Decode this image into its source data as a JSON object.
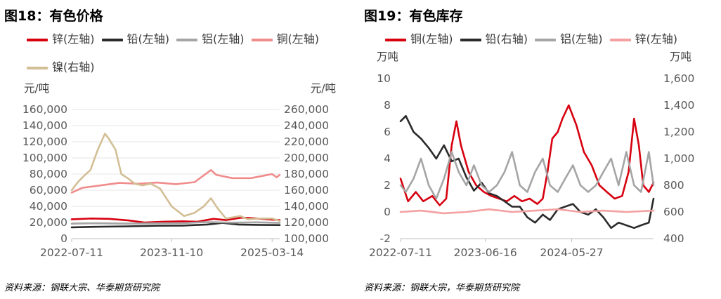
{
  "charts": [
    {
      "title": "图18：有色价格",
      "source": "资料来源：钢联大宗、华泰期货研究院",
      "chart_data": {
        "type": "line",
        "y_left_unit": "元/吨",
        "y_right_unit": "元/吨",
        "y_left_range": [
          0,
          160000
        ],
        "y_left_ticks": [
          "0",
          "20,000",
          "40,000",
          "60,000",
          "80,000",
          "100,000",
          "120,000",
          "140,000",
          "160,000"
        ],
        "y_right_range": [
          100000,
          260000
        ],
        "y_right_ticks": [
          "100,000",
          "120,000",
          "140,000",
          "160,000",
          "180,000",
          "200,000",
          "220,000",
          "240,000",
          "260,000"
        ],
        "x_range": [
          "2022-07-11",
          "2025-04-20"
        ],
        "x_ticks": [
          "2022-07-11",
          "2023-11-10",
          "2025-03-14"
        ],
        "grid": "horizontal",
        "legend_position": "top",
        "series": [
          {
            "name": "锌(左轴)",
            "axis": "left",
            "color": "#d7000f",
            "x": [
              "2022-07-11",
              "2022-10-15",
              "2023-01-10",
              "2023-04-15",
              "2023-07-01",
              "2023-10-01",
              "2024-01-01",
              "2024-03-15",
              "2024-06-01",
              "2024-08-01",
              "2024-10-15",
              "2025-01-01",
              "2025-03-14",
              "2025-04-20"
            ],
            "y": [
              24000,
              25000,
              24500,
              22500,
              20000,
              21000,
              21500,
              21000,
              24500,
              23000,
              26000,
              25000,
              23500,
              23000
            ]
          },
          {
            "name": "铅(左轴)",
            "axis": "left",
            "color": "#2b2b2b",
            "x": [
              "2022-07-11",
              "2022-12-01",
              "2023-04-01",
              "2023-09-01",
              "2024-01-01",
              "2024-05-01",
              "2024-07-15",
              "2024-10-01",
              "2025-01-01",
              "2025-04-20"
            ],
            "y": [
              14000,
              14800,
              15200,
              16000,
              16200,
              17500,
              19500,
              17500,
              17000,
              16800
            ]
          },
          {
            "name": "铝(左轴)",
            "axis": "left",
            "color": "#a5a5a5",
            "x": [
              "2022-07-11",
              "2022-11-01",
              "2023-04-01",
              "2023-09-01",
              "2024-01-01",
              "2024-05-01",
              "2024-09-01",
              "2025-01-01",
              "2025-04-20"
            ],
            "y": [
              18500,
              19000,
              18500,
              19000,
              19200,
              20500,
              19800,
              20200,
              19500
            ]
          },
          {
            "name": "铜(左轴)",
            "axis": "left",
            "color": "#f08c8c",
            "x": [
              "2022-07-11",
              "2022-09-01",
              "2022-12-01",
              "2023-03-01",
              "2023-06-01",
              "2023-09-01",
              "2023-12-01",
              "2024-03-01",
              "2024-05-20",
              "2024-06-15",
              "2024-09-01",
              "2024-12-01",
              "2025-02-01",
              "2025-03-14",
              "2025-04-05",
              "2025-04-20"
            ],
            "y": [
              57000,
              63000,
              66000,
              69000,
              68000,
              69500,
              67500,
              70000,
              85000,
              79000,
              75000,
              75000,
              78000,
              80000,
              76000,
              79000
            ]
          },
          {
            "name": "镍(右轴)",
            "axis": "right",
            "color": "#d3bf96",
            "x": [
              "2022-07-11",
              "2022-08-10",
              "2022-09-10",
              "2022-10-10",
              "2022-11-15",
              "2022-12-20",
              "2023-01-05",
              "2023-02-10",
              "2023-03-10",
              "2023-04-10",
              "2023-05-15",
              "2023-06-20",
              "2023-08-01",
              "2023-09-15",
              "2023-11-10",
              "2024-01-10",
              "2024-03-01",
              "2024-04-15",
              "2024-05-20",
              "2024-06-20",
              "2024-08-01",
              "2024-10-10",
              "2024-11-15",
              "2025-01-10",
              "2025-03-14",
              "2025-04-20"
            ],
            "y": [
              160000,
              170000,
              178000,
              185000,
              210000,
              230000,
              225000,
              210000,
              180000,
              175000,
              168000,
              166000,
              168000,
              162000,
              140000,
              128000,
              132000,
              140000,
              150000,
              138000,
              125000,
              128000,
              124000,
              125000,
              125000,
              122000
            ]
          }
        ]
      }
    },
    {
      "title": "图19：有色库存",
      "source": "资料来源：钢联大宗，华泰期货研究院",
      "chart_data": {
        "type": "line",
        "y_left_unit": "万吨",
        "y_right_unit": "万吨",
        "y_left_range": [
          -2,
          10
        ],
        "y_left_ticks": [
          "-2",
          "0",
          "2",
          "4",
          "6",
          "8",
          "10"
        ],
        "y_right_range": [
          400,
          1600
        ],
        "y_right_ticks": [
          "400",
          "600",
          "800",
          "1,000",
          "1,200",
          "1,400",
          "1,600"
        ],
        "x_range": [
          "2022-07-11",
          "2025-04-20"
        ],
        "x_ticks": [
          "2022-07-11",
          "2023-06-16",
          "2024-05-27"
        ],
        "grid": "none",
        "legend_position": "top",
        "series": [
          {
            "name": "铜(左轴)",
            "axis": "left",
            "color": "#d7000f",
            "x": [
              "2022-07-11",
              "2022-08-10",
              "2022-09-10",
              "2022-10-10",
              "2022-11-15",
              "2022-12-15",
              "2023-01-10",
              "2023-02-01",
              "2023-02-20",
              "2023-03-10",
              "2023-04-10",
              "2023-05-10",
              "2023-06-10",
              "2023-07-10",
              "2023-08-10",
              "2023-09-10",
              "2023-10-10",
              "2023-11-10",
              "2023-12-10",
              "2024-01-10",
              "2024-02-01",
              "2024-02-20",
              "2024-03-10",
              "2024-04-01",
              "2024-04-20",
              "2024-05-15",
              "2024-06-15",
              "2024-07-15",
              "2024-08-15",
              "2024-09-15",
              "2024-10-15",
              "2024-11-15",
              "2024-12-15",
              "2025-01-10",
              "2025-02-01",
              "2025-02-20",
              "2025-03-10",
              "2025-04-01",
              "2025-04-20"
            ],
            "y": [
              2.5,
              0.8,
              1.5,
              0.8,
              1.2,
              0.5,
              1.0,
              5.0,
              6.8,
              5.0,
              3.0,
              2.0,
              1.5,
              1.2,
              1.0,
              0.8,
              1.2,
              0.8,
              1.0,
              0.6,
              1.0,
              3.0,
              5.5,
              6.0,
              7.0,
              8.0,
              6.5,
              4.5,
              3.5,
              2.0,
              1.5,
              1.0,
              1.2,
              3.0,
              7.0,
              5.0,
              2.0,
              1.5,
              2.2
            ]
          },
          {
            "name": "铅(右轴)",
            "axis": "right",
            "color": "#2b2b2b",
            "x": [
              "2022-07-11",
              "2022-08-01",
              "2022-09-01",
              "2022-10-01",
              "2022-11-01",
              "2022-12-01",
              "2023-01-01",
              "2023-02-01",
              "2023-03-01",
              "2023-04-01",
              "2023-05-01",
              "2023-06-01",
              "2023-07-01",
              "2023-08-01",
              "2023-09-01",
              "2023-10-01",
              "2023-11-01",
              "2023-12-01",
              "2024-01-01",
              "2024-02-01",
              "2024-03-01",
              "2024-04-01",
              "2024-05-01",
              "2024-06-01",
              "2024-07-01",
              "2024-08-01",
              "2024-09-01",
              "2024-10-01",
              "2024-11-01",
              "2024-12-01",
              "2025-01-01",
              "2025-02-01",
              "2025-03-01",
              "2025-04-01",
              "2025-04-20"
            ],
            "y": [
              1280,
              1320,
              1200,
              1150,
              1080,
              1000,
              1100,
              980,
              1000,
              860,
              760,
              820,
              740,
              720,
              680,
              640,
              640,
              560,
              520,
              580,
              540,
              620,
              640,
              660,
              600,
              580,
              620,
              560,
              480,
              520,
              500,
              480,
              500,
              520,
              700
            ]
          },
          {
            "name": "铝(左轴)",
            "axis": "left",
            "color": "#a5a5a5",
            "x": [
              "2022-07-11",
              "2022-08-01",
              "2022-09-01",
              "2022-10-01",
              "2022-11-01",
              "2022-12-01",
              "2023-01-01",
              "2023-02-01",
              "2023-03-01",
              "2023-04-01",
              "2023-05-01",
              "2023-06-01",
              "2023-07-01",
              "2023-08-01",
              "2023-09-01",
              "2023-10-01",
              "2023-11-01",
              "2023-12-01",
              "2024-01-01",
              "2024-02-01",
              "2024-03-01",
              "2024-04-01",
              "2024-05-01",
              "2024-06-01",
              "2024-07-01",
              "2024-08-01",
              "2024-09-01",
              "2024-10-01",
              "2024-11-01",
              "2024-12-01",
              "2025-01-01",
              "2025-02-01",
              "2025-03-01",
              "2025-04-01",
              "2025-04-20"
            ],
            "y": [
              2.0,
              1.5,
              2.5,
              4.0,
              2.0,
              1.0,
              2.5,
              4.5,
              3.0,
              2.0,
              3.5,
              2.0,
              1.5,
              2.0,
              3.0,
              4.5,
              2.0,
              1.5,
              3.0,
              4.0,
              2.0,
              1.5,
              2.5,
              3.5,
              2.0,
              1.5,
              2.0,
              3.0,
              4.0,
              2.0,
              4.5,
              2.0,
              1.5,
              4.5,
              2.0
            ]
          },
          {
            "name": "锌(左轴)",
            "axis": "left",
            "color": "#f4a0a0",
            "x": [
              "2022-07-11",
              "2022-10-01",
              "2023-01-01",
              "2023-04-01",
              "2023-07-01",
              "2023-10-01",
              "2024-01-01",
              "2024-04-01",
              "2024-07-01",
              "2024-10-01",
              "2025-01-01",
              "2025-04-20"
            ],
            "y": [
              0.0,
              0.1,
              -0.1,
              0.0,
              0.2,
              0.0,
              0.1,
              0.2,
              0.0,
              0.1,
              0.0,
              0.1
            ]
          }
        ]
      }
    }
  ]
}
